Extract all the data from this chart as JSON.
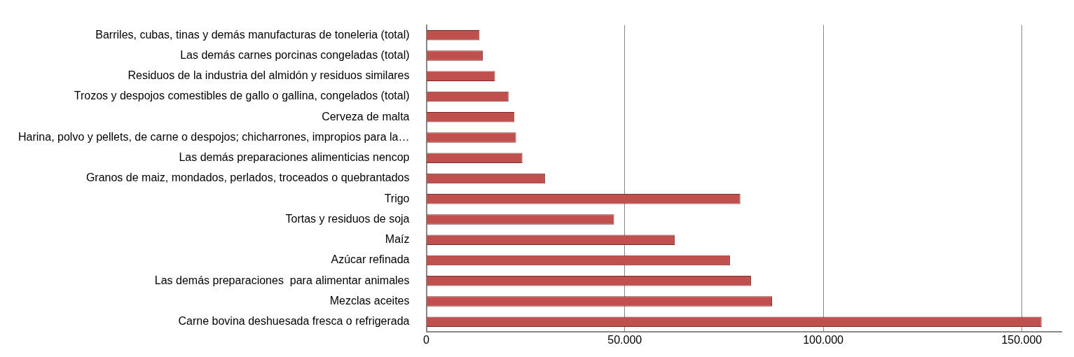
{
  "chart_data": {
    "type": "bar",
    "orientation": "horizontal",
    "categories": [
      "Barriles, cubas, tinas y demás manufacturas de toneleria (total)",
      "Las demás carnes porcinas congeladas (total)",
      "Residuos de la industria del almidón y residuos similares",
      "Trozos y despojos comestibles de gallo o gallina, congelados (total)",
      "Cerveza de malta",
      "Harina, polvo y pellets, de carne o despojos; chicharrones, impropios para la…",
      "Las demás preparaciones alimenticias nencop",
      "Granos de maiz, mondados, perlados, troceados o quebrantados",
      "Trigo",
      "Tortas y residuos de soja",
      "Maíz",
      "Azúcar refinada",
      "Las demás preparaciones  para alimentar animales",
      "Mezclas aceites",
      "Carne bovina deshuesada fresca o refrigerada"
    ],
    "values": [
      13400,
      14200,
      17300,
      20700,
      22200,
      22600,
      24200,
      29900,
      79100,
      47300,
      62600,
      76500,
      81800,
      87100,
      155000
    ],
    "color": "#c0504d",
    "xlim": [
      0,
      160000
    ],
    "xticks": [
      {
        "value": 0,
        "label": "0"
      },
      {
        "value": 50000,
        "label": "50.000"
      },
      {
        "value": 100000,
        "label": "100.000"
      },
      {
        "value": 150000,
        "label": "150.000"
      }
    ],
    "grid": "x",
    "legend": false
  }
}
